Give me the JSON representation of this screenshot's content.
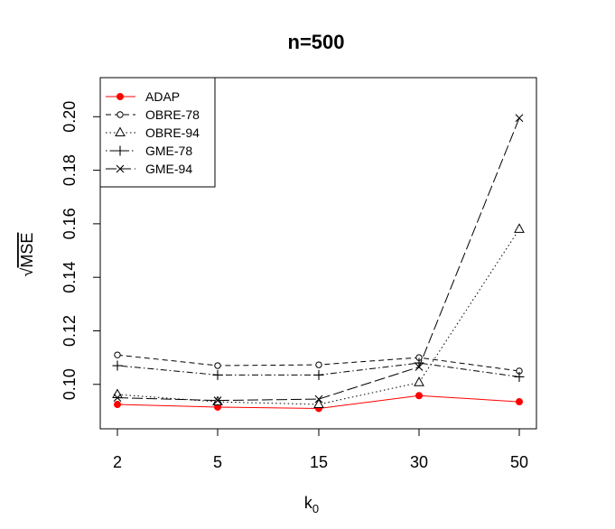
{
  "chart_data": {
    "type": "line",
    "title": "n=500",
    "xlabel": "k",
    "xlabel_subscript": "0",
    "ylabel": "MSE",
    "ylabel_prefix": "√",
    "categories": [
      "2",
      "5",
      "15",
      "30",
      "50"
    ],
    "yticks": [
      "0.10",
      "0.12",
      "0.14",
      "0.16",
      "0.18",
      "0.20"
    ],
    "ytick_values": [
      0.1,
      0.12,
      0.14,
      0.16,
      0.18,
      0.2
    ],
    "ylim": [
      0.0834,
      0.2146
    ],
    "legend_position": "top-left",
    "grid": false,
    "series": [
      {
        "name": "ADAP",
        "values": [
          0.0925,
          0.0915,
          0.091,
          0.0958,
          0.0935
        ],
        "color": "#ff0000",
        "line": "solid",
        "marker": "filled-circle"
      },
      {
        "name": "OBRE-78",
        "values": [
          0.111,
          0.107,
          0.1073,
          0.11,
          0.105
        ],
        "color": "#000000",
        "line": "dashed",
        "marker": "open-circle"
      },
      {
        "name": "OBRE-94",
        "values": [
          0.0962,
          0.0935,
          0.0925,
          0.1007,
          0.158
        ],
        "color": "#000000",
        "line": "dotted",
        "marker": "triangle"
      },
      {
        "name": "GME-78",
        "values": [
          0.107,
          0.1035,
          0.1035,
          0.108,
          0.1028
        ],
        "color": "#000000",
        "line": "dotdash",
        "marker": "plus"
      },
      {
        "name": "GME-94",
        "values": [
          0.095,
          0.094,
          0.0945,
          0.1065,
          0.1995
        ],
        "color": "#000000",
        "line": "longdash",
        "marker": "cross"
      }
    ]
  }
}
